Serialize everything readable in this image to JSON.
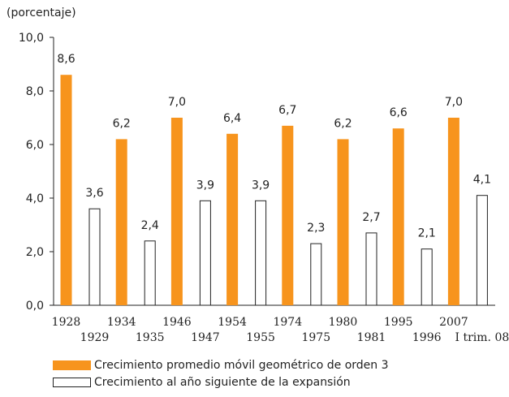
{
  "chart_data": {
    "type": "bar",
    "unit_label": "(porcentaje)",
    "ylim": [
      0,
      10
    ],
    "yticks": [
      "0,0",
      "2,0",
      "4,0",
      "6,0",
      "8,0",
      "10,0"
    ],
    "grid": false,
    "legend_position": "bottom-left",
    "series": [
      {
        "name": "Crecimiento promedio móvil geométrico de orden 3",
        "color": "#F7941D",
        "categories": [
          "1928",
          "1934",
          "1946",
          "1954",
          "1974",
          "1980",
          "1995",
          "2007"
        ],
        "values": [
          8.6,
          6.2,
          7.0,
          6.4,
          6.7,
          6.2,
          6.6,
          7.0
        ],
        "labels": [
          "8,6",
          "6,2",
          "7,0",
          "6,4",
          "6,7",
          "6,2",
          "6,6",
          "7,0"
        ]
      },
      {
        "name": "Crecimiento al año siguiente de la expansión",
        "color": "#FFFFFF",
        "categories": [
          "1929",
          "1935",
          "1947",
          "1955",
          "1975",
          "1981",
          "1996",
          "I trim. 08"
        ],
        "values": [
          3.6,
          2.4,
          3.9,
          3.9,
          2.3,
          2.7,
          2.1,
          4.1
        ],
        "labels": [
          "3,6",
          "2,4",
          "3,9",
          "3,9",
          "2,3",
          "2,7",
          "2,1",
          "4,1"
        ]
      }
    ]
  }
}
